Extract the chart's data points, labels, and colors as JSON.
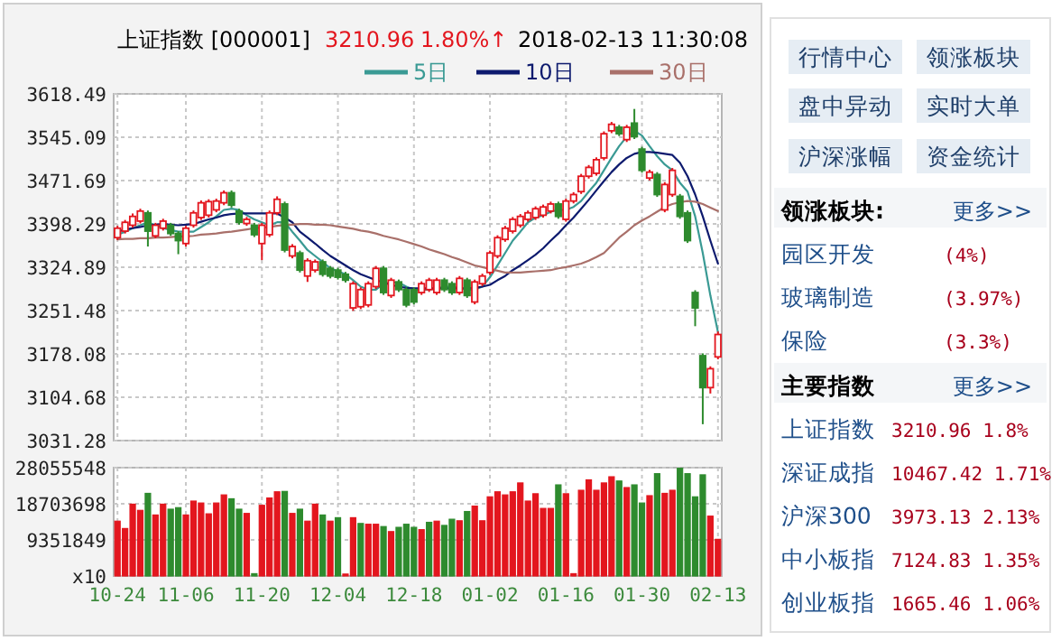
{
  "chart_data": [
    {
      "type": "candlestick",
      "title": "上证指数 [000001]",
      "annotations": [
        "3210.96",
        "1.80%↑",
        "2018-02-13 11:30:08"
      ],
      "ohlc": [
        [
          3375,
          3395,
          3371,
          3391
        ],
        [
          3386,
          3405,
          3382,
          3401
        ],
        [
          3396,
          3416,
          3392,
          3411
        ],
        [
          3403,
          3424,
          3399,
          3420
        ],
        [
          3417,
          3421,
          3360,
          3386
        ],
        [
          3378,
          3400,
          3374,
          3396
        ],
        [
          3391,
          3407,
          3387,
          3403
        ],
        [
          3396,
          3400,
          3378,
          3382
        ],
        [
          3382,
          3386,
          3347,
          3370
        ],
        [
          3365,
          3395,
          3360,
          3391
        ],
        [
          3396,
          3421,
          3392,
          3417
        ],
        [
          3409,
          3438,
          3405,
          3434
        ],
        [
          3413,
          3440,
          3409,
          3436
        ],
        [
          3422,
          3441,
          3418,
          3437
        ],
        [
          3434,
          3455,
          3430,
          3451
        ],
        [
          3451,
          3455,
          3426,
          3430
        ],
        [
          3420,
          3424,
          3397,
          3401
        ],
        [
          3399,
          3410,
          3395,
          3406
        ],
        [
          3396,
          3400,
          3376,
          3380
        ],
        [
          3365,
          3400,
          3337,
          3396
        ],
        [
          3380,
          3421,
          3376,
          3417
        ],
        [
          3417,
          3445,
          3413,
          3440
        ],
        [
          3432,
          3436,
          3350,
          3354
        ],
        [
          3344,
          3364,
          3340,
          3360
        ],
        [
          3349,
          3353,
          3316,
          3320
        ],
        [
          3310,
          3340,
          3300,
          3336
        ],
        [
          3320,
          3338,
          3316,
          3334
        ],
        [
          3334,
          3338,
          3309,
          3313
        ],
        [
          3323,
          3327,
          3306,
          3310
        ],
        [
          3320,
          3324,
          3304,
          3308
        ],
        [
          3313,
          3317,
          3299,
          3303
        ],
        [
          3256,
          3301,
          3251,
          3297
        ],
        [
          3258,
          3291,
          3254,
          3287
        ],
        [
          3261,
          3301,
          3257,
          3297
        ],
        [
          3292,
          3327,
          3288,
          3323
        ],
        [
          3323,
          3327,
          3278,
          3282
        ],
        [
          3277,
          3307,
          3273,
          3303
        ],
        [
          3300,
          3304,
          3283,
          3287
        ],
        [
          3287,
          3291,
          3257,
          3261
        ],
        [
          3287,
          3291,
          3262,
          3266
        ],
        [
          3282,
          3301,
          3278,
          3297
        ],
        [
          3287,
          3307,
          3283,
          3303
        ],
        [
          3282,
          3307,
          3278,
          3303
        ],
        [
          3303,
          3307,
          3283,
          3287
        ],
        [
          3297,
          3301,
          3278,
          3282
        ],
        [
          3282,
          3310,
          3278,
          3306
        ],
        [
          3303,
          3307,
          3273,
          3277
        ],
        [
          3266,
          3304,
          3262,
          3300
        ],
        [
          3297,
          3314,
          3293,
          3310
        ],
        [
          3316,
          3353,
          3312,
          3349
        ],
        [
          3344,
          3379,
          3340,
          3375
        ],
        [
          3372,
          3395,
          3368,
          3391
        ],
        [
          3386,
          3410,
          3382,
          3406
        ],
        [
          3396,
          3415,
          3392,
          3411
        ],
        [
          3406,
          3421,
          3402,
          3417
        ],
        [
          3409,
          3428,
          3405,
          3424
        ],
        [
          3413,
          3431,
          3409,
          3427
        ],
        [
          3420,
          3436,
          3416,
          3432
        ],
        [
          3432,
          3436,
          3407,
          3411
        ],
        [
          3406,
          3441,
          3402,
          3437
        ],
        [
          3437,
          3452,
          3433,
          3448
        ],
        [
          3453,
          3483,
          3449,
          3479
        ],
        [
          3479,
          3498,
          3475,
          3494
        ],
        [
          3484,
          3511,
          3480,
          3507
        ],
        [
          3510,
          3555,
          3506,
          3551
        ],
        [
          3556,
          3571,
          3552,
          3567
        ],
        [
          3562,
          3566,
          3547,
          3551
        ],
        [
          3541,
          3566,
          3537,
          3562
        ],
        [
          3569,
          3593,
          3542,
          3546
        ],
        [
          3525,
          3529,
          3485,
          3489
        ],
        [
          3476,
          3490,
          3472,
          3486
        ],
        [
          3482,
          3486,
          3444,
          3448
        ],
        [
          3422,
          3469,
          3418,
          3465
        ],
        [
          3448,
          3493,
          3444,
          3489
        ],
        [
          3445,
          3449,
          3407,
          3411
        ],
        [
          3417,
          3421,
          3366,
          3370
        ],
        [
          3282,
          3286,
          3225,
          3256
        ],
        [
          3175,
          3179,
          3059,
          3121
        ],
        [
          3121,
          3157,
          3111,
          3153
        ],
        [
          3173,
          3216,
          3169,
          3210.96
        ]
      ],
      "series": [
        {
          "type": "line",
          "name": "5日",
          "color": "#3a9a94",
          "values": [
            3380,
            3385,
            3391,
            3396,
            3401,
            3396,
            3391,
            3388,
            3385,
            3385,
            3385,
            3393,
            3401,
            3411,
            3422,
            3424,
            3422,
            3413,
            3406,
            3401,
            3396,
            3401,
            3401,
            3385,
            3370,
            3354,
            3344,
            3334,
            3323,
            3318,
            3313,
            3303,
            3292,
            3287,
            3287,
            3297,
            3299,
            3299,
            3292,
            3287,
            3287,
            3287,
            3289,
            3292,
            3292,
            3290,
            3287,
            3287,
            3292,
            3308,
            3328,
            3349,
            3370,
            3385,
            3401,
            3409,
            3413,
            3419,
            3422,
            3422,
            3427,
            3437,
            3453,
            3468,
            3489,
            3510,
            3530,
            3546,
            3556,
            3548,
            3530,
            3513,
            3499,
            3489,
            3468,
            3453,
            3411,
            3349,
            3277,
            3215
          ]
        },
        {
          "type": "line",
          "name": "10日",
          "color": "#0d1a6e",
          "values": [
            3385,
            3389,
            3391,
            3393,
            3396,
            3397,
            3398,
            3397,
            3396,
            3397,
            3398,
            3402,
            3406,
            3409,
            3413,
            3415,
            3416,
            3416,
            3416,
            3416,
            3416,
            3416,
            3409,
            3401,
            3385,
            3375,
            3365,
            3354,
            3344,
            3336,
            3328,
            3320,
            3313,
            3308,
            3303,
            3299,
            3295,
            3292,
            3290,
            3289,
            3289,
            3289,
            3289,
            3289,
            3289,
            3289,
            3289,
            3290,
            3292,
            3295,
            3303,
            3310,
            3320,
            3328,
            3337,
            3346,
            3357,
            3370,
            3382,
            3396,
            3409,
            3424,
            3439,
            3455,
            3471,
            3486,
            3499,
            3510,
            3517,
            3520,
            3520,
            3519,
            3517,
            3515,
            3502,
            3479,
            3448,
            3411,
            3370,
            3331
          ]
        },
        {
          "type": "line",
          "name": "30日",
          "color": "#a9706a",
          "values": [
            3372,
            3373,
            3373,
            3374,
            3374,
            3375,
            3375,
            3376,
            3377,
            3377,
            3378,
            3380,
            3381,
            3382,
            3384,
            3385,
            3387,
            3389,
            3391,
            3392,
            3393,
            3395,
            3396,
            3397,
            3398,
            3398,
            3397,
            3397,
            3396,
            3394,
            3392,
            3390,
            3387,
            3385,
            3382,
            3378,
            3375,
            3372,
            3368,
            3364,
            3360,
            3355,
            3351,
            3347,
            3342,
            3338,
            3333,
            3328,
            3325,
            3322,
            3319,
            3316,
            3316,
            3316,
            3317,
            3318,
            3319,
            3320,
            3323,
            3325,
            3328,
            3331,
            3336,
            3342,
            3349,
            3362,
            3375,
            3385,
            3396,
            3404,
            3411,
            3419,
            3427,
            3432,
            3435,
            3437,
            3436,
            3432,
            3426,
            3420
          ]
        }
      ],
      "ylim": [
        3031.28,
        3618.49
      ],
      "yticks": [
        3031.28,
        3104.68,
        3178.08,
        3251.48,
        3324.89,
        3398.29,
        3471.69,
        3545.09,
        3618.49
      ],
      "grid": true,
      "legend": "top right",
      "tick_labels": "y"
    },
    {
      "type": "bar",
      "categories": [
        "10-24",
        null,
        null,
        null,
        null,
        null,
        null,
        null,
        null,
        "11-06",
        null,
        null,
        null,
        null,
        null,
        null,
        null,
        null,
        null,
        "11-20",
        null,
        null,
        null,
        null,
        null,
        null,
        null,
        null,
        null,
        "12-04",
        null,
        null,
        null,
        null,
        null,
        null,
        null,
        null,
        null,
        "12-18",
        null,
        null,
        null,
        null,
        null,
        null,
        null,
        null,
        null,
        "01-02",
        null,
        null,
        null,
        null,
        null,
        null,
        null,
        null,
        null,
        "01-16",
        null,
        null,
        null,
        null,
        null,
        null,
        null,
        null,
        null,
        "01-30",
        null,
        null,
        null,
        null,
        null,
        null,
        null,
        null,
        null,
        "02-13"
      ],
      "values": [
        14200000,
        12300000,
        18600000,
        17000000,
        21400000,
        15800000,
        18600000,
        17300000,
        17700000,
        15800000,
        19400000,
        18900000,
        16100000,
        18900000,
        21000000,
        20000000,
        17300000,
        16200000,
        600000,
        18300000,
        20200000,
        21800000,
        21900000,
        16200000,
        17300000,
        14200000,
        18600000,
        15800000,
        14200000,
        15100000,
        500000,
        15100000,
        13600000,
        13400000,
        13400000,
        12800000,
        11500000,
        12600000,
        13400000,
        12600000,
        12000000,
        13900000,
        14200000,
        13100000,
        14700000,
        14300000,
        16700000,
        18100000,
        14300000,
        20500000,
        21800000,
        21000000,
        21800000,
        24100000,
        19400000,
        21300000,
        17500000,
        17500000,
        23600000,
        21300000,
        600000,
        22200000,
        24900000,
        22200000,
        24100000,
        25700000,
        24600000,
        22900000,
        23600000,
        18900000,
        20800000,
        26500000,
        21400000,
        22200000,
        27900000,
        26500000,
        20500000,
        26200000,
        15500000,
        9500000
      ],
      "colors": [
        "#e3161e",
        "#e3161e",
        "#e3161e",
        "#e3161e",
        "#2e8b2e",
        "#e3161e",
        "#e3161e",
        "#2e8b2e",
        "#2e8b2e",
        "#e3161e",
        "#e3161e",
        "#e3161e",
        "#e3161e",
        "#e3161e",
        "#e3161e",
        "#2e8b2e",
        "#2e8b2e",
        "#e3161e",
        "#2e8b2e",
        "#e3161e",
        "#e3161e",
        "#e3161e",
        "#2e8b2e",
        "#e3161e",
        "#2e8b2e",
        "#e3161e",
        "#e3161e",
        "#2e8b2e",
        "#e3161e",
        "#2e8b2e",
        "#e3161e",
        "#e3161e",
        "#2e8b2e",
        "#e3161e",
        "#e3161e",
        "#2e8b2e",
        "#e3161e",
        "#2e8b2e",
        "#2e8b2e",
        "#2e8b2e",
        "#e3161e",
        "#2e8b2e",
        "#e3161e",
        "#2e8b2e",
        "#2e8b2e",
        "#e3161e",
        "#2e8b2e",
        "#e3161e",
        "#e3161e",
        "#e3161e",
        "#e3161e",
        "#e3161e",
        "#e3161e",
        "#e3161e",
        "#e3161e",
        "#e3161e",
        "#e3161e",
        "#e3161e",
        "#2e8b2e",
        "#e3161e",
        "#e3161e",
        "#e3161e",
        "#e3161e",
        "#e3161e",
        "#e3161e",
        "#e3161e",
        "#2e8b2e",
        "#e3161e",
        "#2e8b2e",
        "#2e8b2e",
        "#e3161e",
        "#2e8b2e",
        "#e3161e",
        "#e3161e",
        "#2e8b2e",
        "#2e8b2e",
        "#2e8b2e",
        "#2e8b2e",
        "#e3161e",
        "#e3161e"
      ],
      "ylim": [
        0,
        28055548
      ],
      "yticks": [
        {
          "value": 0,
          "label": "x10"
        },
        9351849,
        18703698,
        28055548
      ],
      "grid": true
    },
    {
      "type": "other",
      "annotations": [
        "行情中心",
        "领涨板块",
        "盘中异动",
        "实时大单",
        "沪深涨幅",
        "资金统计",
        "领涨板块:",
        "更多>>",
        "园区开发",
        "(4%)",
        "玻璃制造",
        "(3.97%)",
        "保险",
        "(3.3%)",
        "主要指数",
        "更多>>",
        "上证指数",
        "3210.96 1.8%",
        "深证成指",
        "10467.42 1.71%",
        "沪深300",
        "3973.13 2.13%",
        "中小板指",
        "7124.83 1.35%",
        "创业板指",
        "1665.46 1.06%"
      ]
    }
  ]
}
